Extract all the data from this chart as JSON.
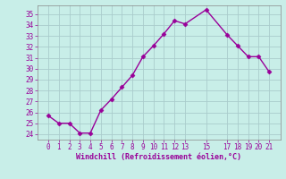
{
  "x": [
    0,
    1,
    2,
    3,
    4,
    5,
    6,
    7,
    8,
    9,
    10,
    11,
    12,
    13,
    15,
    17,
    18,
    19,
    20,
    21
  ],
  "y": [
    25.7,
    25.0,
    25.0,
    24.1,
    24.1,
    26.2,
    27.2,
    28.3,
    29.4,
    31.1,
    32.1,
    33.2,
    34.4,
    34.1,
    35.4,
    33.1,
    32.1,
    31.1,
    31.1,
    29.7
  ],
  "line_color": "#990099",
  "marker": "D",
  "marker_size": 2.5,
  "bg_color": "#c8eee8",
  "grid_color": "#aacccc",
  "xlabel": "Windchill (Refroidissement éolien,°C)",
  "xlabel_color": "#990099",
  "ylim": [
    23.5,
    35.8
  ],
  "yticks": [
    24,
    25,
    26,
    27,
    28,
    29,
    30,
    31,
    32,
    33,
    34,
    35
  ],
  "xticks": [
    0,
    1,
    2,
    3,
    4,
    5,
    6,
    7,
    8,
    9,
    10,
    11,
    12,
    13,
    15,
    17,
    18,
    19,
    20,
    21
  ],
  "tick_color": "#990099",
  "tick_fontsize": 5.5,
  "xlabel_fontsize": 6.0,
  "linewidth": 1.0
}
